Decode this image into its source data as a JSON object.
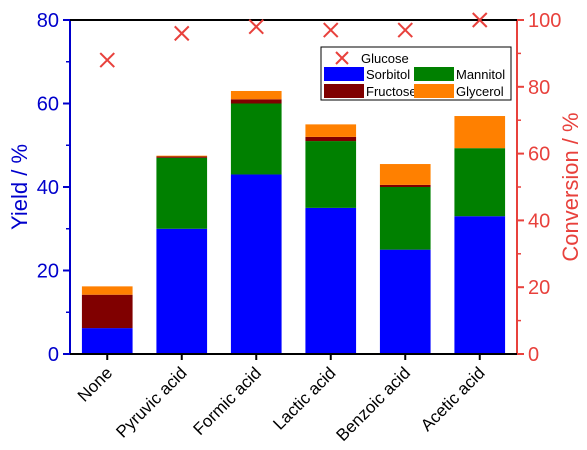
{
  "chart_data": {
    "type": "bar",
    "stacked": true,
    "categories": [
      "None",
      "Pyruvic acid",
      "Formic acid",
      "Lactic acid",
      "Benzoic acid",
      "Acetic acid"
    ],
    "series": [
      {
        "name": "Sorbitol",
        "axis": "left",
        "color": "#0000FF",
        "values": [
          6.2,
          30.0,
          43.0,
          35.0,
          25.0,
          33.0
        ]
      },
      {
        "name": "Mannitol",
        "axis": "left",
        "color": "#008000",
        "values": [
          0.0,
          17.0,
          17.0,
          16.0,
          15.0,
          16.3
        ]
      },
      {
        "name": "Fructose",
        "axis": "left",
        "color": "#800000",
        "values": [
          8.0,
          0.3,
          1.0,
          1.0,
          0.5,
          0.0
        ]
      },
      {
        "name": "Glycerol",
        "axis": "left",
        "color": "#FF8000",
        "values": [
          2.0,
          0.2,
          2.0,
          3.0,
          5.0,
          7.7
        ]
      }
    ],
    "conversion": {
      "name": "Glucose",
      "axis": "right",
      "marker": "x",
      "color": "#E8413C",
      "values": [
        88,
        96,
        98,
        97,
        97,
        100
      ]
    },
    "ylabel": "Yield / %",
    "y2label": "Conversion / %",
    "ylim": [
      0,
      80
    ],
    "y2lim": [
      0,
      100
    ],
    "yticks": [
      "0",
      "20",
      "40",
      "60",
      "80"
    ],
    "y2ticks": [
      "0",
      "20",
      "40",
      "60",
      "80",
      "100"
    ],
    "left_axis_color": "#0000CC",
    "right_axis_color": "#E8413C",
    "legend_position": "top-right",
    "grid": false
  }
}
